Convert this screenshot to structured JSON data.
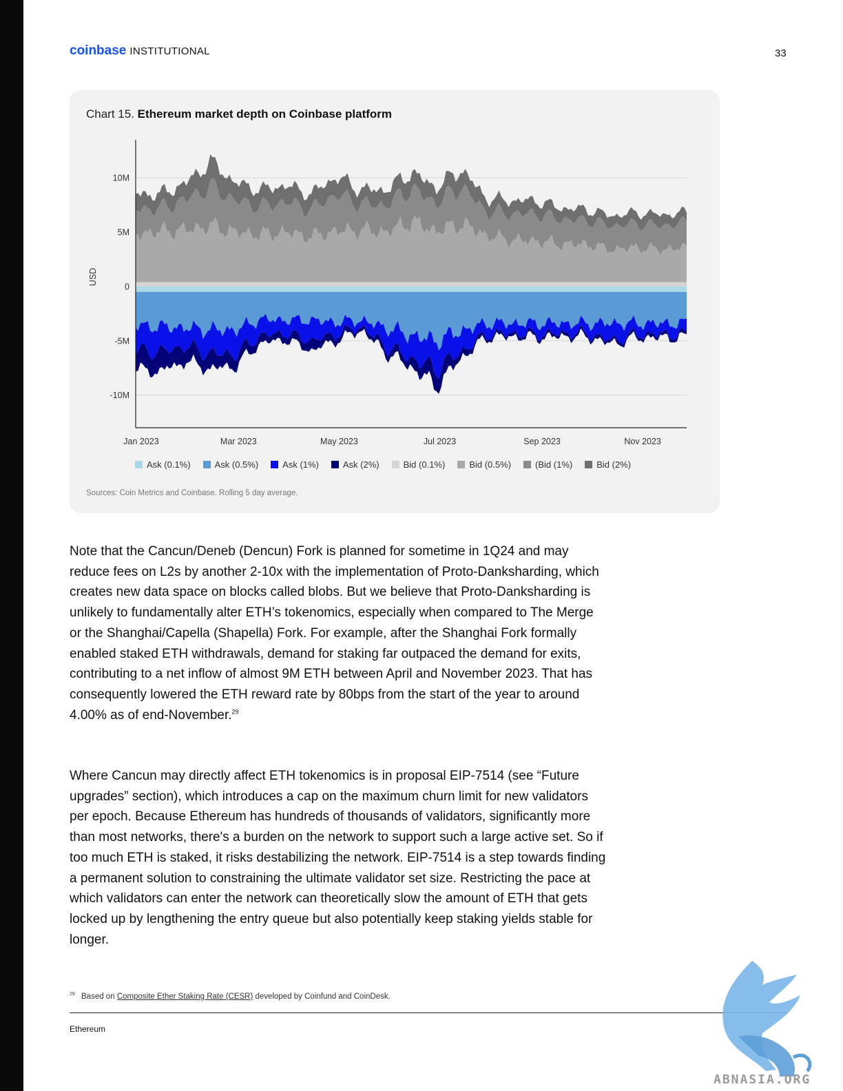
{
  "header": {
    "brand_logo": "coinbase",
    "brand_suffix": "INSTITUTIONAL",
    "page_number": "33"
  },
  "chart": {
    "title_prefix": "Chart 15.",
    "title": "Ethereum market depth on Coinbase platform",
    "sources": "Sources: Coin Metrics and Coinbase. Rolling 5 day average."
  },
  "chart_data": {
    "type": "area",
    "title": "Chart 15. Ethereum market depth on Coinbase platform",
    "ylabel": "USD",
    "ylim": [
      -13000000,
      13500000
    ],
    "y_ticks": [
      10000000,
      5000000,
      0,
      -5000000,
      -10000000
    ],
    "y_tick_labels": [
      "10M",
      "5M",
      "0",
      "-5M",
      "-10M"
    ],
    "x_tick_labels": [
      "Jan 2023",
      "Mar 2023",
      "May 2023",
      "Jul 2023",
      "Sep 2023",
      "Nov 2023"
    ],
    "x": [
      "2023-01-01",
      "2023-01-15",
      "2023-02-01",
      "2023-02-15",
      "2023-03-01",
      "2023-03-15",
      "2023-04-01",
      "2023-04-15",
      "2023-05-01",
      "2023-05-15",
      "2023-06-01",
      "2023-06-15",
      "2023-07-01",
      "2023-07-15",
      "2023-08-01",
      "2023-08-15",
      "2023-09-01",
      "2023-09-15",
      "2023-10-01",
      "2023-10-15",
      "2023-11-01",
      "2023-11-15",
      "2023-12-01"
    ],
    "stacking": "Bids stacked upward from zero; asks stacked downward from zero (negative values)",
    "grid": true,
    "legend_position": "bottom",
    "series": [
      {
        "name": "Ask (0.1%)",
        "color": "#add8e6",
        "values": [
          -0.5,
          -0.5,
          -0.5,
          -0.5,
          -0.5,
          -0.5,
          -0.5,
          -0.5,
          -0.5,
          -0.5,
          -0.5,
          -0.5,
          -0.5,
          -0.5,
          -0.5,
          -0.5,
          -0.5,
          -0.5,
          -0.5,
          -0.5,
          -0.5,
          -0.5,
          -0.5
        ]
      },
      {
        "name": "Ask (0.5%)",
        "color": "#5b9bd5",
        "values": [
          -3.1,
          -3.2,
          -3.3,
          -3.5,
          -3.5,
          -2.5,
          -2.6,
          -2.6,
          -2.8,
          -2.6,
          -3.3,
          -4.0,
          -4.5,
          -3.6,
          -2.9,
          -2.9,
          -2.9,
          -2.9,
          -2.9,
          -2.9,
          -2.9,
          -2.9,
          -2.9
        ]
      },
      {
        "name": "Ask (1%)",
        "color": "#0a10e8",
        "values": [
          -2.3,
          -2.3,
          -1.7,
          -2.2,
          -2.2,
          -1.5,
          -1.2,
          -1.9,
          -1.1,
          -0.6,
          -1.7,
          -2.1,
          -2.6,
          -1.9,
          -1.0,
          -0.9,
          -1.0,
          -0.9,
          -0.9,
          -1.6,
          -1.0,
          -1.0,
          -1.0
        ]
      },
      {
        "name": "Ask (2%)",
        "color": "#030377",
        "values": [
          -1.8,
          -1.8,
          -1.4,
          -1.4,
          -1.1,
          -0.7,
          -0.6,
          -0.9,
          -0.6,
          -0.3,
          -0.6,
          -0.8,
          -1.6,
          -0.6,
          -0.3,
          -0.3,
          -0.3,
          -0.3,
          -0.3,
          -0.3,
          -0.3,
          -0.3,
          -0.3
        ]
      },
      {
        "name": "Bid (0.1%)",
        "color": "#d4d4d4",
        "values": [
          0.4,
          0.4,
          0.4,
          0.4,
          0.4,
          0.4,
          0.4,
          0.4,
          0.4,
          0.4,
          0.4,
          0.4,
          0.4,
          0.4,
          0.4,
          0.4,
          0.4,
          0.4,
          0.4,
          0.4,
          0.4,
          0.4,
          0.4
        ]
      },
      {
        "name": "Bid (0.5%)",
        "color": "#a9a9a9",
        "values": [
          4.4,
          4.7,
          4.8,
          5.2,
          4.6,
          4.4,
          4.6,
          4.2,
          4.7,
          4.8,
          4.6,
          5.6,
          4.7,
          5.4,
          4.3,
          3.9,
          3.8,
          3.5,
          3.5,
          3.0,
          3.2,
          3.0,
          3.2
        ]
      },
      {
        "name": "(Bid (1%)",
        "color": "#8a8a8a",
        "values": [
          2.3,
          2.1,
          2.8,
          3.6,
          2.9,
          2.6,
          2.8,
          2.5,
          3.4,
          2.4,
          2.5,
          3.0,
          2.6,
          3.4,
          2.2,
          2.4,
          2.5,
          2.3,
          2.2,
          2.2,
          2.2,
          2.2,
          2.3
        ]
      },
      {
        "name": "Bid (2%)",
        "color": "#6f6f6f",
        "values": [
          1.4,
          1.3,
          1.5,
          2.3,
          1.6,
          1.5,
          1.5,
          1.4,
          1.6,
          1.3,
          1.4,
          1.5,
          1.4,
          1.6,
          1.2,
          1.2,
          1.2,
          1.0,
          1.0,
          0.9,
          1.0,
          1.0,
          0.9
        ]
      }
    ],
    "value_units": "millions USD"
  },
  "paragraphs": [
    "Note that the Cancun/Deneb (Dencun) Fork is planned for sometime in 1Q24 and may reduce fees on L2s by another 2-10x with the implementation of Proto-Danksharding, which creates new data space on blocks called blobs. But we believe that Proto-Danksharding is unlikely to fundamentally alter ETH’s tokenomics, especially when compared to The Merge or the Shanghai/Capella (Shapella) Fork. For example, after the Shanghai Fork formally enabled staked ETH withdrawals, demand for staking far outpaced the demand for exits, contributing to a net inflow of almost 9M ETH between April and November 2023. That has consequently lowered the ETH reward rate by 80bps from the start of the year to around 4.00% as of end-November.",
    "Where Cancun may directly affect ETH tokenomics is in proposal EIP-7514 (see “Future upgrades” section), which introduces a cap on the maximum churn limit for new validators per epoch. Because Ethereum has hundreds of thousands of validators, significantly more than most networks, there's a burden on the network to support such a large active set. So if too much ETH is staked, it risks destabilizing the network. EIP-7514 is a step towards finding a permanent solution to constraining the ultimate validator set size. Restricting the pace at which validators can enter the network can theoretically slow the amount of ETH that gets locked up by lengthening the entry queue but also potentially keep staking yields stable for longer."
  ],
  "footnote": {
    "marker": "29",
    "text_before": "Based on",
    "link": "Composite Ether Staking Rate (CESR)",
    "text_after": "developed by Coinfund and CoinDesk."
  },
  "footer": {
    "section": "Ethereum"
  },
  "watermark": {
    "text": "ABNASIA.ORG",
    "icon": "griffin-logo-icon"
  }
}
